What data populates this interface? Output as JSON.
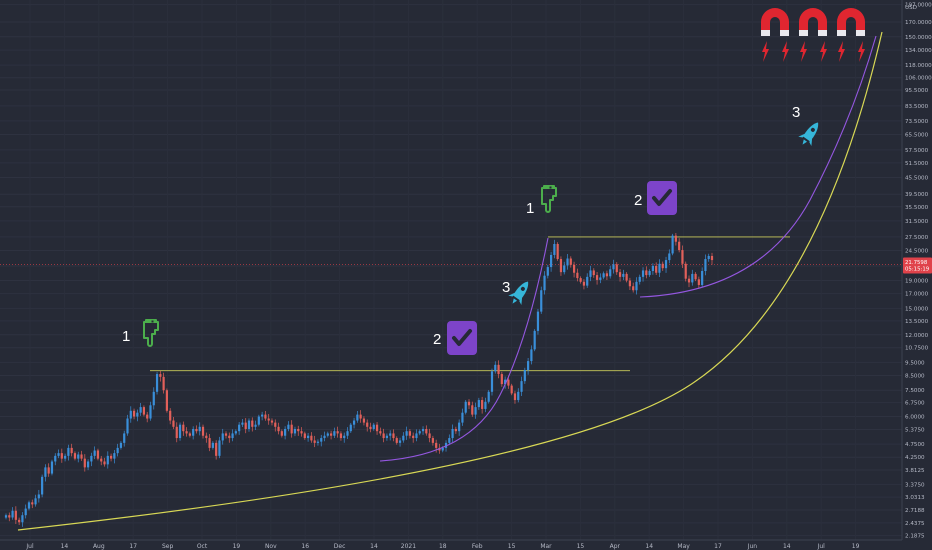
{
  "chart_data": {
    "type": "candlestick",
    "currency": "USD",
    "price_scale": "log",
    "ylim": [
      2.18,
      198.0
    ],
    "y_ticks": [
      "2.1875",
      "2.4375",
      "2.7188",
      "3.0313",
      "3.3750",
      "3.8125",
      "4.2500",
      "4.7500",
      "5.3750",
      "6.0000",
      "6.7500",
      "7.5000",
      "8.5000",
      "9.5000",
      "10.7500",
      "12.0000",
      "13.5000",
      "15.0000",
      "17.0000",
      "19.0000",
      "21.5000",
      "24.5000",
      "27.5000",
      "31.5000",
      "35.5000",
      "39.5000",
      "45.5000",
      "51.5000",
      "57.5000",
      "65.5000",
      "73.5000",
      "83.5000",
      "95.5000",
      "106.0000",
      "118.0000",
      "134.0000",
      "150.0000",
      "170.0000",
      "197.0000"
    ],
    "x_ticks": [
      "Jul",
      "14",
      "Aug",
      "17",
      "Sep",
      "Oct",
      "19",
      "Nov",
      "16",
      "Dec",
      "14",
      "2021",
      "18",
      "Feb",
      "15",
      "Mar",
      "15",
      "Apr",
      "14",
      "May",
      "17",
      "Jun",
      "14",
      "Jul",
      "19"
    ],
    "last_price": {
      "value": "21.7598",
      "countdown": "05:15:19"
    },
    "candles_close": [
      2.6,
      2.55,
      2.7,
      2.5,
      2.45,
      2.6,
      2.75,
      2.9,
      2.85,
      3.0,
      3.1,
      3.6,
      3.9,
      3.7,
      4.1,
      4.3,
      4.4,
      4.2,
      4.3,
      4.6,
      4.4,
      4.2,
      4.35,
      4.2,
      3.9,
      4.1,
      4.3,
      4.5,
      4.2,
      4.1,
      4.0,
      4.3,
      4.2,
      4.4,
      4.6,
      4.8,
      5.2,
      5.9,
      6.3,
      6.0,
      6.2,
      6.5,
      6.1,
      5.9,
      6.6,
      7.4,
      8.6,
      8.4,
      7.5,
      6.3,
      5.8,
      5.5,
      5.0,
      5.6,
      5.3,
      5.2,
      5.1,
      5.4,
      5.3,
      5.5,
      5.1,
      5.0,
      4.6,
      4.8,
      4.3,
      4.9,
      5.2,
      5.1,
      5.0,
      5.2,
      5.3,
      5.6,
      5.7,
      5.4,
      5.8,
      5.5,
      5.6,
      6.0,
      6.1,
      5.9,
      5.8,
      5.7,
      5.5,
      5.3,
      5.1,
      5.4,
      5.6,
      5.2,
      5.4,
      5.3,
      5.2,
      5.0,
      5.1,
      4.9,
      4.8,
      4.85,
      5.0,
      5.1,
      5.2,
      5.1,
      5.3,
      5.2,
      5.0,
      5.1,
      5.3,
      5.6,
      5.8,
      6.1,
      5.9,
      5.7,
      5.5,
      5.4,
      5.6,
      5.3,
      5.2,
      5.0,
      5.1,
      5.2,
      5.0,
      4.8,
      4.9,
      5.1,
      5.3,
      5.1,
      5.0,
      5.2,
      5.3,
      5.4,
      5.2,
      5.0,
      4.8,
      4.6,
      4.5,
      4.6,
      4.8,
      5.0,
      5.4,
      5.3,
      5.7,
      6.2,
      6.8,
      6.6,
      6.1,
      6.5,
      6.9,
      6.4,
      6.8,
      7.4,
      8.8,
      9.3,
      8.6,
      7.9,
      8.2,
      7.8,
      7.3,
      6.9,
      7.4,
      8.1,
      8.9,
      9.6,
      10.6,
      12.4,
      14.6,
      17.5,
      19.8,
      21.3,
      23.6,
      25.9,
      22.8,
      20.4,
      21.6,
      22.9,
      21.7,
      20.3,
      19.4,
      18.8,
      18.2,
      19.6,
      20.7,
      19.9,
      19.1,
      19.5,
      20.2,
      19.7,
      20.9,
      21.8,
      20.4,
      19.6,
      20.1,
      19.0,
      18.1,
      17.5,
      18.8,
      19.6,
      20.7,
      19.9,
      20.6,
      21.5,
      20.3,
      21.9,
      21.1,
      22.6,
      23.9,
      27.8,
      26.4,
      24.6,
      21.9,
      19.3,
      18.7,
      20.1,
      19.2,
      18.3,
      20.6,
      22.8,
      23.4,
      22.6
    ],
    "lines": [
      {
        "type": "horizontal",
        "color": "#c9c95a",
        "price": 8.85
      },
      {
        "type": "horizontal",
        "color": "#c9c95a",
        "price": 27.5
      },
      {
        "type": "parabolic-curve",
        "color": "#d8d855"
      },
      {
        "type": "parabolic-curve",
        "color": "#9457e0"
      },
      {
        "type": "parabolic-curve",
        "color": "#9457e0"
      }
    ],
    "annotations": [
      {
        "text": "1",
        "icon": "pointing-down-hand-icon",
        "color": "#4cae4c"
      },
      {
        "text": "2",
        "icon": "checkmark-box-icon",
        "color": "#7d44c9"
      },
      {
        "text": "3",
        "icon": "rocket-icon",
        "color": "#36b6d9"
      },
      {
        "text": "1",
        "icon": "pointing-down-hand-icon",
        "color": "#4cae4c"
      },
      {
        "text": "2",
        "icon": "checkmark-box-icon",
        "color": "#7d44c9"
      },
      {
        "text": "3",
        "icon": "rocket-icon",
        "color": "#36b6d9"
      }
    ],
    "magnets": {
      "icon": "magnet-icon",
      "count": 3,
      "color": "#e02630"
    },
    "colors": {
      "up": "#3a8fd9",
      "down": "#e2605a",
      "background": "#262a36",
      "last_price_tag": "#e0424a"
    }
  }
}
